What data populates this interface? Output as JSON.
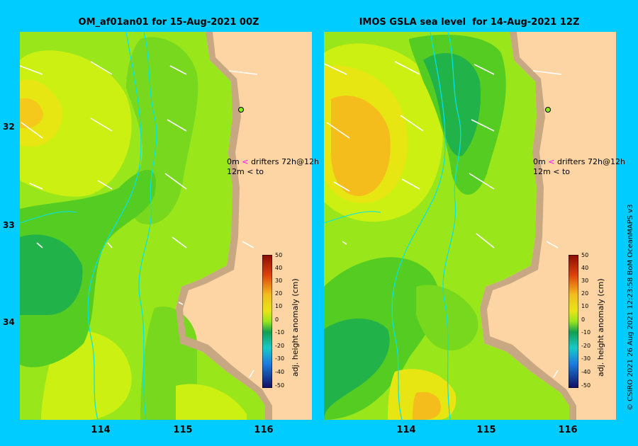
{
  "panels": [
    {
      "title": "OM_af01an01 for 15-Aug-2021 00Z",
      "legend": {
        "row1_value": "0m",
        "row1_arrow": "<",
        "row1_text": "drifters 72h@12h",
        "row2_value": "12m",
        "row2_arrow": "<",
        "row2_text": "to"
      },
      "colorbar": {
        "title": "adj. height anomaly (cm)",
        "ticks": [
          "50",
          "40",
          "30",
          "20",
          "10",
          "0",
          "-10",
          "-20",
          "-30",
          "-40",
          "-50"
        ]
      }
    },
    {
      "title": "IMOS GSLA sea level  for 14-Aug-2021 12Z",
      "legend": {
        "row1_value": "0m",
        "row1_arrow": "<",
        "row1_text": "drifters 72h@12h",
        "row2_value": "12m",
        "row2_arrow": "<",
        "row2_text": "to"
      },
      "colorbar": {
        "title": "adj. height anomaly (cm)",
        "ticks": [
          "50",
          "40",
          "30",
          "20",
          "10",
          "0",
          "-10",
          "-20",
          "-30",
          "-40",
          "-50"
        ]
      }
    }
  ],
  "y_ticks": [
    "32",
    "33",
    "34"
  ],
  "x_ticks": [
    "114",
    "115",
    "116"
  ],
  "credit": "© CSIRO 2021   26 Aug 2021 12:23:58 BoM OceanMAPS v3",
  "colors": {
    "background": "#00ccff",
    "land": "#fdd5a5",
    "coast": "#c8a882",
    "anomaly_0_5": "#55cc22",
    "anomaly_5_10": "#99e61a",
    "anomaly_10_15": "#ccf012",
    "anomaly_15_20": "#e8e612",
    "anomaly_20_25": "#f5bd1c",
    "anomaly_neg": "#22b24a",
    "anomaly_neg2": "#10a050"
  },
  "chart_data": {
    "type": "heatmap",
    "colorbar_range_cm": [
      -50,
      50
    ],
    "longitude_ticks": [
      114,
      115,
      116
    ],
    "latitude_ticks": [
      32,
      33,
      34
    ]
  }
}
